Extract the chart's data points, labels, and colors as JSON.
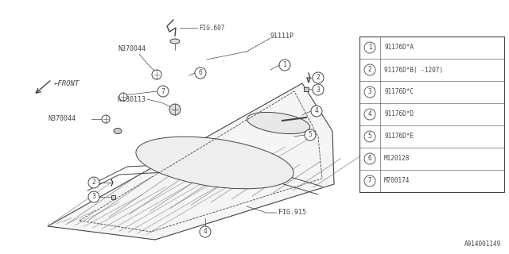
{
  "bg_color": "#ffffff",
  "line_color": "#888888",
  "dark_line": "#444444",
  "title_bottom_right": "A914001149",
  "legend_items": [
    {
      "num": "1",
      "code": "91176D*A"
    },
    {
      "num": "2",
      "code": "91176D*B( -1207)"
    },
    {
      "num": "3",
      "code": "91176D*C"
    },
    {
      "num": "4",
      "code": "91176D*D"
    },
    {
      "num": "5",
      "code": "91176D*E"
    },
    {
      "num": "6",
      "code": "M120128"
    },
    {
      "num": "7",
      "code": "M700174"
    }
  ],
  "fig_width": 6.4,
  "fig_height": 3.2,
  "dpi": 100
}
